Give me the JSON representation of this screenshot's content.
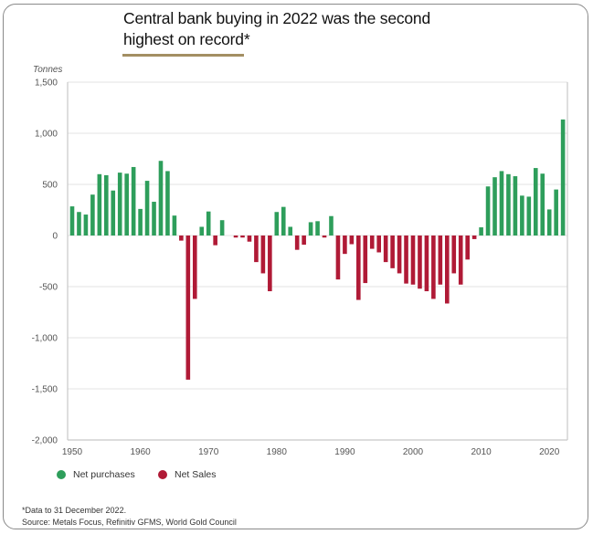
{
  "title_line1": "Central bank buying in 2022 was the second",
  "title_line2": "highest on record*",
  "colors": {
    "purchases": "#2e9e5b",
    "sales": "#b01a36",
    "accent_rule": "#a38f63",
    "grid": "#e3e3e3",
    "axis": "#c8c8c8"
  },
  "legend": [
    {
      "label": "Net purchases",
      "color": "#2e9e5b"
    },
    {
      "label": "Net Sales",
      "color": "#b01a36"
    }
  ],
  "footnotes": [
    "*Data to 31 December 2022.",
    "Source: Metals Focus, Refinitiv GFMS, World Gold Council"
  ],
  "chart_data": {
    "type": "bar",
    "title": "Central bank buying in 2022 was the second highest on record*",
    "xlabel": "",
    "ylabel": "Tonnes",
    "ylim": [
      -2000,
      1500
    ],
    "yticks": [
      1500,
      1000,
      500,
      0,
      -500,
      -1000,
      -1500,
      -2000
    ],
    "ytick_labels": [
      "1,500",
      "1,000",
      "500",
      "0",
      "-500",
      "-1,000",
      "-1,500",
      "-2,000"
    ],
    "xticks": [
      1950,
      1960,
      1970,
      1980,
      1990,
      2000,
      2010,
      2020
    ],
    "grid": true,
    "legend_position": "bottom-left",
    "categories": [
      1950,
      1951,
      1952,
      1953,
      1954,
      1955,
      1956,
      1957,
      1958,
      1959,
      1960,
      1961,
      1962,
      1963,
      1964,
      1965,
      1966,
      1967,
      1968,
      1969,
      1970,
      1971,
      1972,
      1973,
      1974,
      1975,
      1976,
      1977,
      1978,
      1979,
      1980,
      1981,
      1982,
      1983,
      1984,
      1985,
      1986,
      1987,
      1988,
      1989,
      1990,
      1991,
      1992,
      1993,
      1994,
      1995,
      1996,
      1997,
      1998,
      1999,
      2000,
      2001,
      2002,
      2003,
      2004,
      2005,
      2006,
      2007,
      2008,
      2009,
      2010,
      2011,
      2012,
      2013,
      2014,
      2015,
      2016,
      2017,
      2018,
      2019,
      2020,
      2021,
      2022
    ],
    "values": [
      285,
      230,
      205,
      400,
      600,
      590,
      440,
      615,
      605,
      670,
      260,
      535,
      330,
      730,
      630,
      195,
      -50,
      -1410,
      -620,
      85,
      235,
      -95,
      150,
      0,
      -20,
      -20,
      -60,
      -260,
      -370,
      -545,
      230,
      280,
      85,
      -140,
      -90,
      130,
      140,
      -20,
      190,
      -430,
      -180,
      -85,
      -630,
      -465,
      -130,
      -165,
      -260,
      -320,
      -370,
      -470,
      -480,
      -520,
      -545,
      -620,
      -480,
      -665,
      -370,
      -480,
      -235,
      -35,
      80,
      480,
      570,
      630,
      600,
      580,
      390,
      380,
      660,
      605,
      255,
      450,
      1135
    ],
    "series_names": [
      "Net purchases",
      "Net Sales"
    ]
  }
}
